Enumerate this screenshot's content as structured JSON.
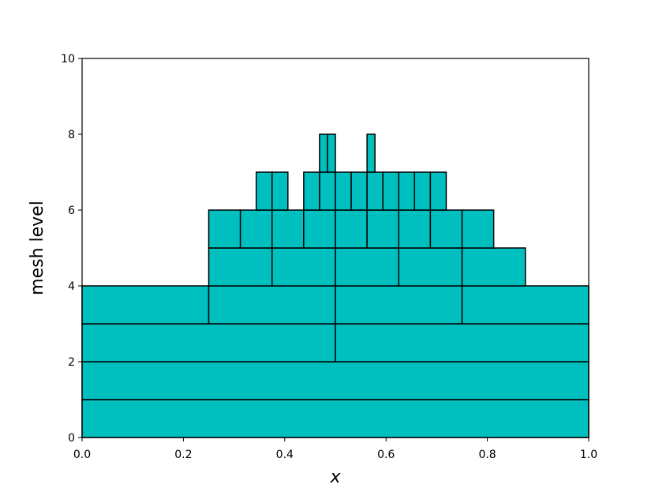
{
  "chart_data": {
    "type": "mesh",
    "xlabel": "x",
    "ylabel": "mesh level",
    "color": "#00bfbf",
    "edgecolor": "#000000",
    "xlim": [
      0,
      1
    ],
    "ylim": [
      0,
      10
    ],
    "xticks": [
      {
        "value": 0,
        "label": "0.0"
      },
      {
        "value": 0.2,
        "label": "0.2"
      },
      {
        "value": 0.4,
        "label": "0.4"
      },
      {
        "value": 0.6,
        "label": "0.6"
      },
      {
        "value": 0.8,
        "label": "0.8"
      },
      {
        "value": 1,
        "label": "1.0"
      }
    ],
    "yticks": [
      0,
      2,
      4,
      6,
      8,
      10
    ],
    "cells": [
      {
        "level": 1,
        "x0": 0,
        "x1": 1
      },
      {
        "level": 2,
        "x0": 0,
        "x1": 1
      },
      {
        "level": 3,
        "x0": 0,
        "x1": 0.5
      },
      {
        "level": 3,
        "x0": 0.5,
        "x1": 1
      },
      {
        "level": 4,
        "x0": 0,
        "x1": 0.25
      },
      {
        "level": 4,
        "x0": 0.25,
        "x1": 0.5
      },
      {
        "level": 4,
        "x0": 0.5,
        "x1": 0.75
      },
      {
        "level": 4,
        "x0": 0.75,
        "x1": 1
      },
      {
        "level": 5,
        "x0": 0.25,
        "x1": 0.375
      },
      {
        "level": 5,
        "x0": 0.375,
        "x1": 0.5
      },
      {
        "level": 5,
        "x0": 0.5,
        "x1": 0.625
      },
      {
        "level": 5,
        "x0": 0.625,
        "x1": 0.75
      },
      {
        "level": 5,
        "x0": 0.75,
        "x1": 0.875
      },
      {
        "level": 6,
        "x0": 0.25,
        "x1": 0.3125
      },
      {
        "level": 6,
        "x0": 0.3125,
        "x1": 0.375
      },
      {
        "level": 6,
        "x0": 0.375,
        "x1": 0.4375
      },
      {
        "level": 6,
        "x0": 0.4375,
        "x1": 0.5
      },
      {
        "level": 6,
        "x0": 0.5,
        "x1": 0.5625
      },
      {
        "level": 6,
        "x0": 0.5625,
        "x1": 0.625
      },
      {
        "level": 6,
        "x0": 0.625,
        "x1": 0.6875
      },
      {
        "level": 6,
        "x0": 0.6875,
        "x1": 0.75
      },
      {
        "level": 6,
        "x0": 0.75,
        "x1": 0.8125
      },
      {
        "level": 7,
        "x0": 0.34375,
        "x1": 0.375
      },
      {
        "level": 7,
        "x0": 0.375,
        "x1": 0.40625
      },
      {
        "level": 7,
        "x0": 0.4375,
        "x1": 0.46875
      },
      {
        "level": 7,
        "x0": 0.46875,
        "x1": 0.5
      },
      {
        "level": 7,
        "x0": 0.5,
        "x1": 0.53125
      },
      {
        "level": 7,
        "x0": 0.53125,
        "x1": 0.5625
      },
      {
        "level": 7,
        "x0": 0.5625,
        "x1": 0.59375
      },
      {
        "level": 7,
        "x0": 0.59375,
        "x1": 0.625
      },
      {
        "level": 7,
        "x0": 0.625,
        "x1": 0.65625
      },
      {
        "level": 7,
        "x0": 0.65625,
        "x1": 0.6875
      },
      {
        "level": 7,
        "x0": 0.6875,
        "x1": 0.71875
      },
      {
        "level": 8,
        "x0": 0.46875,
        "x1": 0.484375
      },
      {
        "level": 8,
        "x0": 0.484375,
        "x1": 0.5
      },
      {
        "level": 8,
        "x0": 0.5625,
        "x1": 0.578125
      }
    ]
  }
}
